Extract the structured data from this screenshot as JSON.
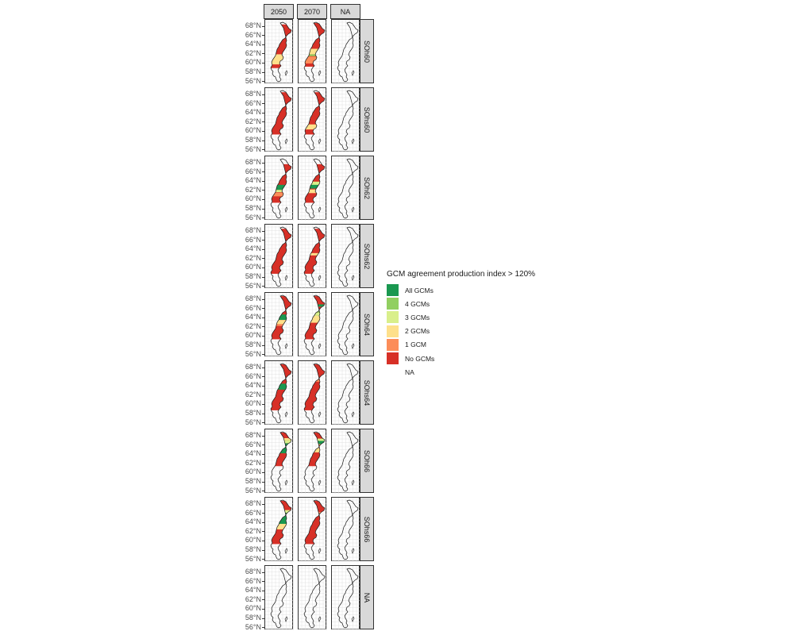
{
  "legend": {
    "title": "GCM agreement production index > 120%",
    "items": [
      {
        "label": "All GCMs",
        "color": "#1a9850"
      },
      {
        "label": "4 GCMs",
        "color": "#91cf60"
      },
      {
        "label": "3 GCMs",
        "color": "#d9ef8b"
      },
      {
        "label": "2 GCMs",
        "color": "#fee08b"
      },
      {
        "label": "1 GCM",
        "color": "#fc8d59"
      },
      {
        "label": "No GCMs",
        "color": "#d73027"
      },
      {
        "label": "NA",
        "color": "#ffffff"
      }
    ]
  },
  "facets": {
    "columns": [
      "2050",
      "2070",
      "NA"
    ],
    "rows": [
      "SOh60",
      "SOhs60",
      "SOh62",
      "SOhs62",
      "SOh64",
      "SOhs64",
      "SOh66",
      "SOhs66",
      "NA"
    ]
  },
  "y_axis_ticks": [
    "68°N",
    "66°N",
    "64°N",
    "62°N",
    "60°N",
    "58°N",
    "56°N"
  ],
  "map": {
    "region": "Sweden",
    "outline_color": "#1a1a1a",
    "grid_color": "#e0e0e0",
    "fill_default": "No GCMs",
    "fill_extent": {
      "SOh60": {
        "2050": [
          68.5,
          59.0
        ],
        "2070": [
          68.8,
          59.3
        ]
      },
      "SOhs60": {
        "2050": [
          68.6,
          59.4
        ],
        "2070": [
          68.6,
          59.4
        ]
      },
      "SOh62": {
        "2050": [
          67.8,
          59.4
        ],
        "2070": [
          67.8,
          59.4
        ]
      },
      "SOhs62": {
        "2050": [
          68.6,
          58.8
        ],
        "2070": [
          68.6,
          58.8
        ]
      },
      "SOh64": {
        "2050": [
          68.8,
          59.4
        ],
        "2070": [
          68.8,
          59.4
        ]
      },
      "SOhs64": {
        "2050": [
          68.8,
          58.8
        ],
        "2070": [
          68.8,
          58.8
        ]
      },
      "SOh66": {
        "2050": [
          68.8,
          61.5
        ],
        "2070": [
          68.8,
          61.5
        ]
      },
      "SOhs66": {
        "2050": [
          68.8,
          59.4
        ],
        "2070": [
          68.8,
          59.4
        ]
      }
    },
    "highlights": {
      "SOh60": {
        "2050": [
          {
            "cat": "2 GCMs",
            "lat": [
              59.8,
              62.0
            ]
          }
        ],
        "2070": [
          {
            "cat": "2 GCMs",
            "lat": [
              62.0,
              63.2
            ]
          },
          {
            "cat": "1 GCM",
            "lat": [
              60.0,
              61.5
            ]
          },
          {
            "cat": "4 GCMs",
            "lat": [
              61.6,
              62.0
            ]
          }
        ]
      },
      "SOhs60": {
        "2050": [],
        "2070": [
          {
            "cat": "2 GCMs",
            "lat": [
              60.5,
              61.6
            ]
          }
        ]
      },
      "SOh62": {
        "2050": [
          {
            "cat": "All GCMs",
            "lat": [
              62.2,
              63.3
            ]
          },
          {
            "cat": "3 GCMs",
            "lat": [
              61.7,
              62.2
            ]
          },
          {
            "cat": "1 GCM",
            "lat": [
              60.8,
              61.6
            ]
          }
        ],
        "2070": [
          {
            "cat": "All GCMs",
            "lat": [
              62.5,
              63.4
            ]
          },
          {
            "cat": "3 GCMs",
            "lat": [
              63.3,
              64.0
            ]
          },
          {
            "cat": "2 GCMs",
            "lat": [
              61.5,
              62.3
            ]
          }
        ]
      },
      "SOhs62": {
        "2050": [],
        "2070": [
          {
            "cat": "2 GCMs",
            "lat": [
              62.8,
              63.3
            ]
          }
        ]
      },
      "SOh64": {
        "2050": [
          {
            "cat": "All GCMs",
            "lat": [
              63.6,
              64.8
            ]
          },
          {
            "cat": "2 GCMs",
            "lat": [
              62.7,
              63.6
            ]
          },
          {
            "cat": "1 GCM",
            "lat": [
              62.3,
              62.7
            ]
          }
        ],
        "2070": [
          {
            "cat": "2 GCMs",
            "lat": [
              63.0,
              64.5
            ]
          },
          {
            "cat": "3 GCMs",
            "lat": [
              64.5,
              65.2
            ]
          },
          {
            "cat": "4 GCMs",
            "lat": [
              65.2,
              65.6
            ]
          },
          {
            "cat": "All GCMs",
            "lat": [
              66.5,
              67.0
            ]
          }
        ]
      },
      "SOhs64": {
        "2050": [
          {
            "cat": "All GCMs",
            "lat": [
              63.3,
              64.6
            ]
          }
        ],
        "2070": [
          {
            "cat": "1 GCM",
            "lat": [
              65.0,
              65.5
            ]
          }
        ]
      },
      "SOh66": {
        "2050": [
          {
            "cat": "All GCMs",
            "lat": [
              64.3,
              66.5
            ]
          },
          {
            "cat": "3 GCMs",
            "lat": [
              66.5,
              67.2
            ]
          },
          {
            "cat": "2 GCMs",
            "lat": [
              67.2,
              67.6
            ]
          }
        ],
        "2070": [
          {
            "cat": "2 GCMs",
            "lat": [
              64.5,
              65.5
            ]
          },
          {
            "cat": "1 GCM",
            "lat": [
              65.5,
              66.3
            ]
          },
          {
            "cat": "All GCMs",
            "lat": [
              66.3,
              67.0
            ]
          },
          {
            "cat": "3 GCMs",
            "lat": [
              67.0,
              67.5
            ]
          }
        ]
      },
      "SOhs66": {
        "2050": [
          {
            "cat": "All GCMs",
            "lat": [
              63.8,
              66.2
            ]
          },
          {
            "cat": "2 GCMs",
            "lat": [
              62.6,
              63.8
            ]
          },
          {
            "cat": "3 GCMs",
            "lat": [
              66.2,
              66.8
            ]
          }
        ],
        "2070": [
          {
            "cat": "1 GCM",
            "lat": [
              65.8,
              66.4
            ]
          }
        ]
      }
    }
  }
}
